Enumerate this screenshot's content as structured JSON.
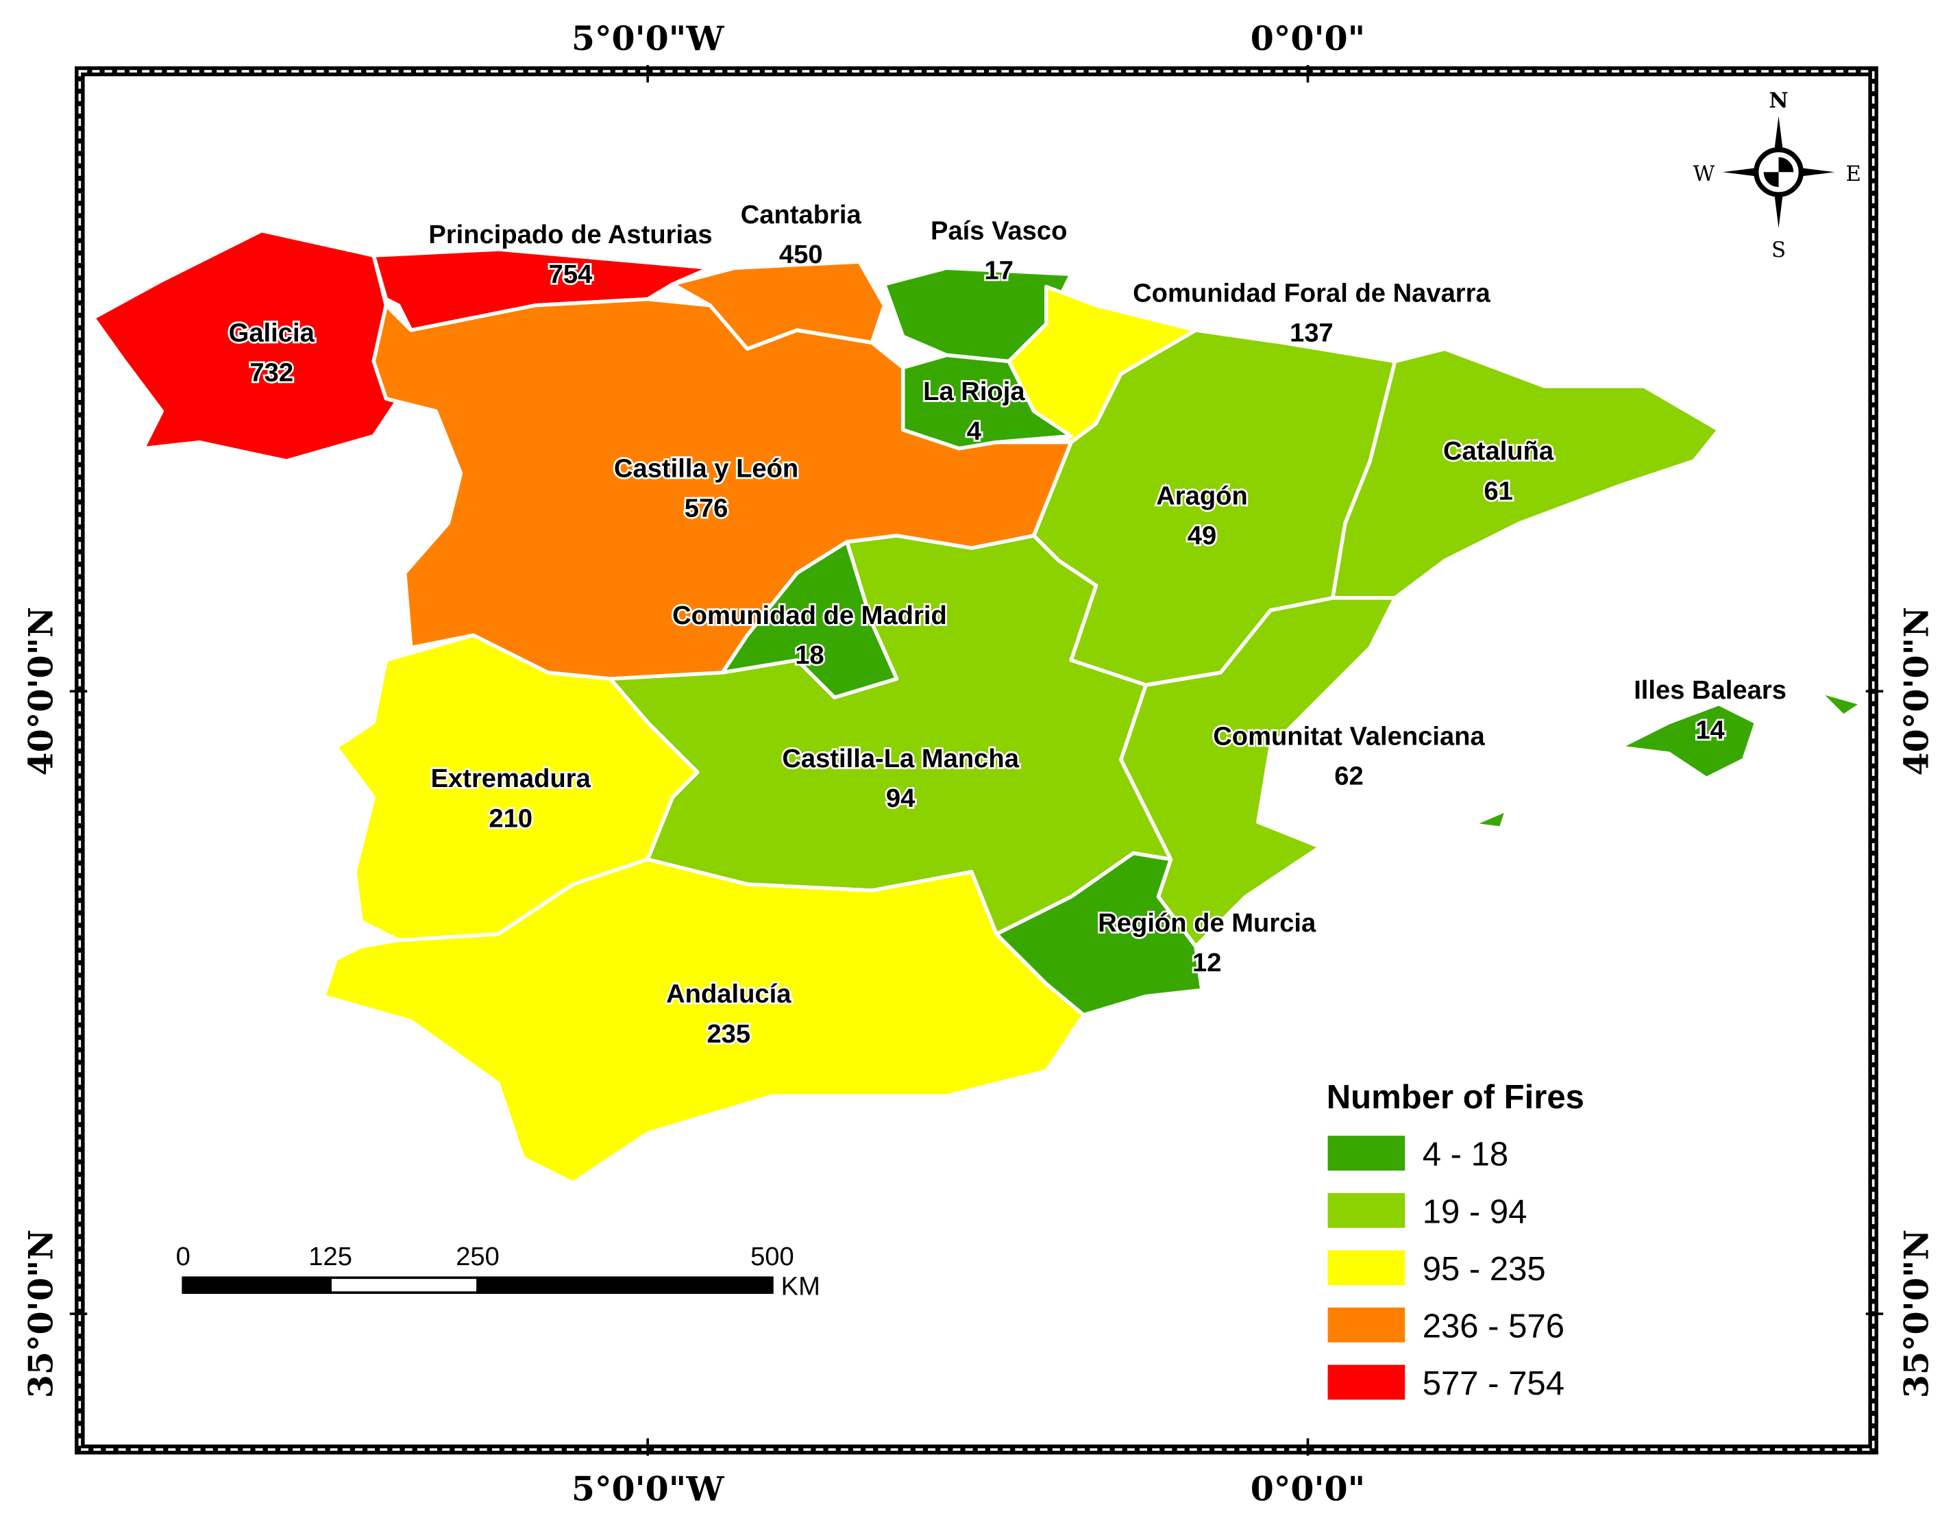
{
  "map": {
    "regions": [
      {
        "name": "Galicia",
        "value": 732
      },
      {
        "name": "Principado de Asturias",
        "value": 754
      },
      {
        "name": "Cantabria",
        "value": 450
      },
      {
        "name": "País Vasco",
        "value": 17
      },
      {
        "name": "Comunidad Foral de Navarra",
        "value": 137
      },
      {
        "name": "La Rioja",
        "value": 4
      },
      {
        "name": "Castilla y León",
        "value": 576
      },
      {
        "name": "Aragón",
        "value": 49
      },
      {
        "name": "Cataluña",
        "value": 61
      },
      {
        "name": "Comunidad de Madrid",
        "value": 18
      },
      {
        "name": "Castilla-La Mancha",
        "value": 94
      },
      {
        "name": "Comunitat Valenciana",
        "value": 62
      },
      {
        "name": "Extremadura",
        "value": 210
      },
      {
        "name": "Región de Murcia",
        "value": 12
      },
      {
        "name": "Andalucía",
        "value": 235
      },
      {
        "name": "Illes Balears",
        "value": 14
      }
    ],
    "legend": {
      "title": "Number of Fires",
      "classes": [
        {
          "label": "4 - 18",
          "min": 4,
          "max": 18,
          "color": "#38a800"
        },
        {
          "label": "19 - 94",
          "min": 19,
          "max": 94,
          "color": "#8cd100"
        },
        {
          "label": "95 - 235",
          "min": 95,
          "max": 235,
          "color": "#ffff00"
        },
        {
          "label": "236 - 576",
          "min": 236,
          "max": 576,
          "color": "#ff8000"
        },
        {
          "label": "577 - 754",
          "min": 577,
          "max": 754,
          "color": "#ff0000"
        }
      ]
    },
    "longitude_labels": [
      "5°0'0\"W",
      "0°0'0\""
    ],
    "latitude_labels": [
      "40°0'0\"N",
      "35°0'0\"N"
    ],
    "scale_bar": {
      "ticks": [
        0,
        125,
        250,
        500
      ],
      "unit": "KM"
    },
    "compass": {
      "n": "N",
      "e": "E",
      "s": "S",
      "w": "W"
    }
  }
}
